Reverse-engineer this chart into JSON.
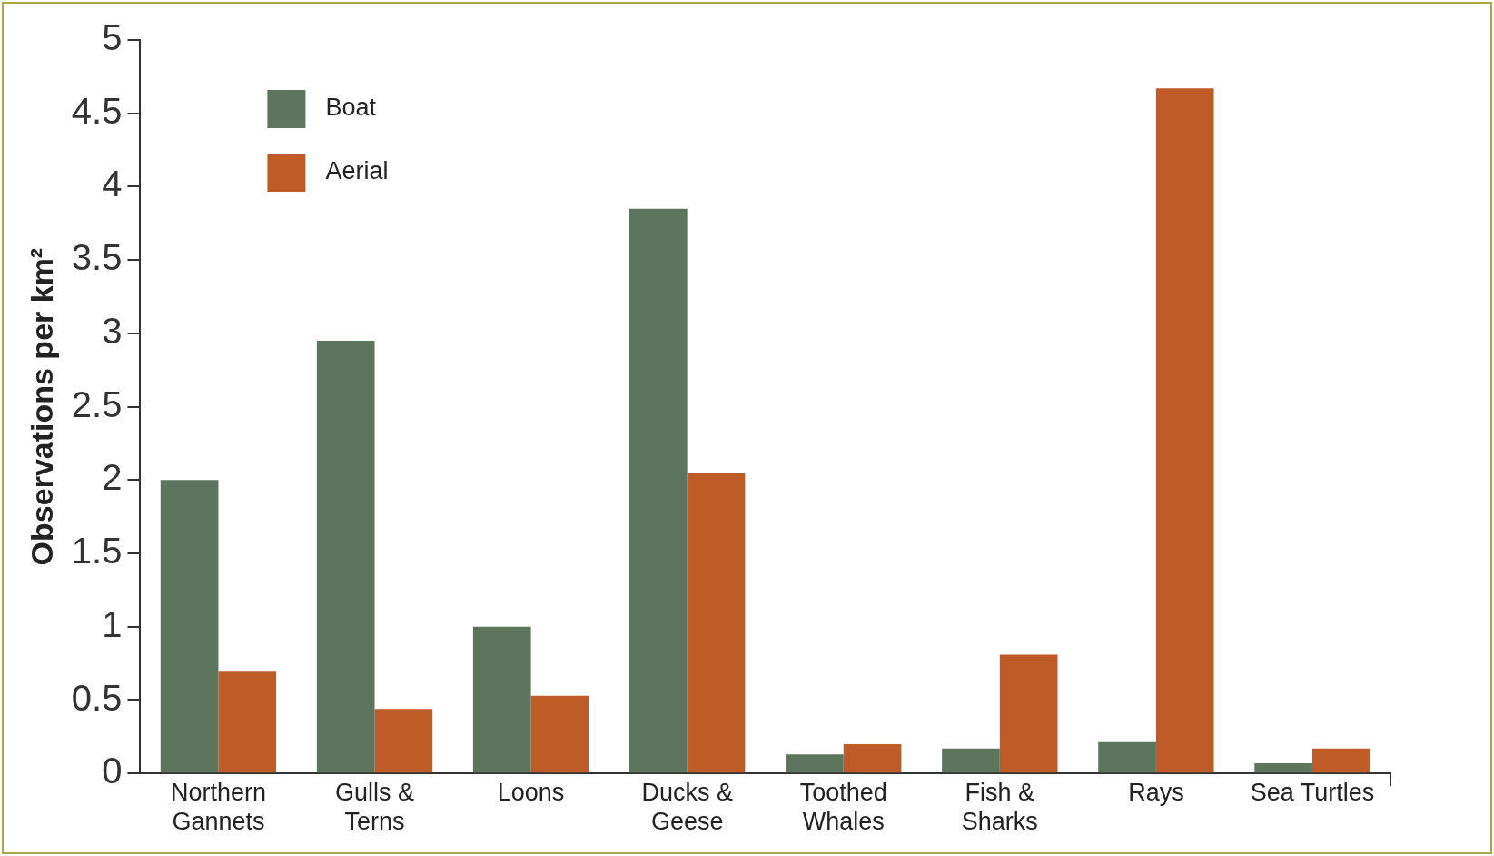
{
  "chart_data": {
    "type": "bar",
    "ylabel": "Observations per km²",
    "categories": [
      "Northern\nGannets",
      "Gulls &\nTerns",
      "Loons",
      "Ducks &\nGeese",
      "Toothed\nWhales",
      "Fish &\nSharks",
      "Rays",
      "Sea Turtles"
    ],
    "series": [
      {
        "name": "Boat",
        "color": "#5c755c",
        "values": [
          2.0,
          2.95,
          1.0,
          3.85,
          0.13,
          0.17,
          0.22,
          0.07
        ]
      },
      {
        "name": "Aerial",
        "color": "#bf5b27",
        "values": [
          0.7,
          0.44,
          0.53,
          2.05,
          0.2,
          0.81,
          4.67,
          0.17
        ]
      }
    ],
    "ylim": [
      0,
      5
    ],
    "yticks": [
      0,
      0.5,
      1,
      1.5,
      2,
      2.5,
      3,
      3.5,
      4,
      4.5,
      5
    ],
    "grid": false,
    "legend": "top left"
  }
}
